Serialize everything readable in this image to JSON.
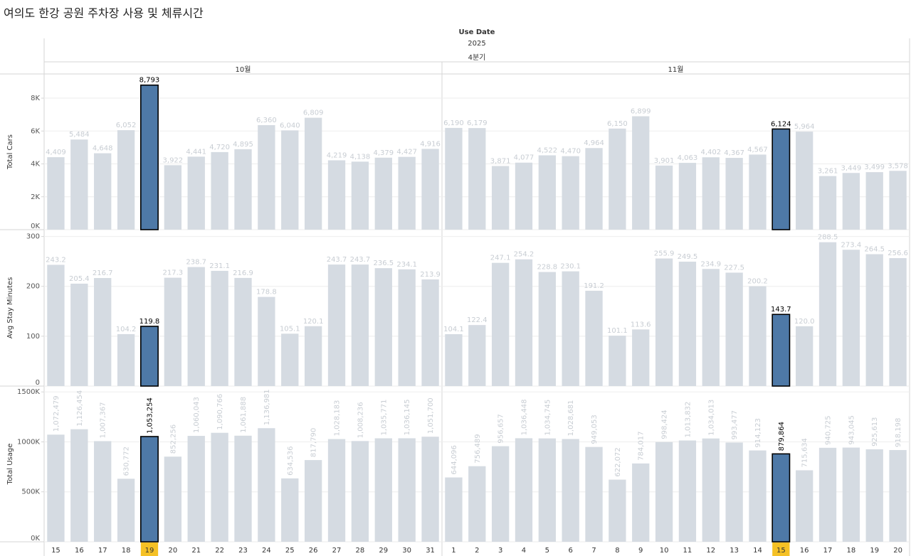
{
  "title": "여의도 한강 공원 주차장 사용 및 체류시간",
  "header": {
    "field_label": "Use Date",
    "year": "2025",
    "quarter": "4분기",
    "months": [
      "10월",
      "11월"
    ]
  },
  "colors": {
    "bar_default": "#d5dbe2",
    "bar_highlight": "#4e79a7",
    "highlight_outline": "#000000",
    "label_default": "#c8cdd3",
    "label_highlight": "#000000",
    "day_highlight_bg": "#f5c125",
    "grid": "#eeeeee",
    "divider": "#d6d6d6"
  },
  "chart_data": {
    "type": "bar",
    "facets": [
      "10월",
      "11월"
    ],
    "categories": [
      [
        "15",
        "16",
        "17",
        "18",
        "19",
        "20",
        "21",
        "22",
        "23",
        "24",
        "25",
        "26",
        "27",
        "28",
        "29",
        "30",
        "31"
      ],
      [
        "1",
        "2",
        "3",
        "4",
        "5",
        "6",
        "7",
        "8",
        "9",
        "10",
        "11",
        "12",
        "13",
        "14",
        "15",
        "16",
        "17",
        "18",
        "19",
        "20"
      ]
    ],
    "highlight": [
      4,
      14
    ],
    "series": [
      {
        "name": "Total Cars",
        "ylim": [
          0,
          9300
        ],
        "ticks": [
          0,
          2000,
          4000,
          6000,
          8000
        ],
        "tick_labels": [
          "0K",
          "2K",
          "4K",
          "6K",
          "8K"
        ],
        "values": [
          [
            4409,
            5484,
            4648,
            6052,
            8793,
            3922,
            4441,
            4720,
            4895,
            6360,
            6040,
            6809,
            4219,
            4138,
            4379,
            4427,
            4916
          ],
          [
            6190,
            6179,
            3871,
            4077,
            4522,
            4470,
            4964,
            6150,
            6899,
            3901,
            4063,
            4402,
            4367,
            4567,
            6124,
            5964,
            3261,
            3449,
            3499,
            3578
          ]
        ],
        "labels": [
          [
            "4,409",
            "5,484",
            "4,648",
            "6,052",
            "8,793",
            "3,922",
            "4,441",
            "4,720",
            "4,895",
            "6,360",
            "6,040",
            "6,809",
            "4,219",
            "4,138",
            "4,379",
            "4,427",
            "4,916"
          ],
          [
            "6,190",
            "6,179",
            "3,871",
            "4,077",
            "4,522",
            "4,470",
            "4,964",
            "6,150",
            "6,899",
            "3,901",
            "4,063",
            "4,402",
            "4,367",
            "4,567",
            "6,124",
            "5,964",
            "3,261",
            "3,449",
            "3,499",
            "3,578"
          ]
        ]
      },
      {
        "name": "Avg Stay Minutes",
        "ylim": [
          0,
          308
        ],
        "ticks": [
          0,
          100,
          200,
          300
        ],
        "tick_labels": [
          "0",
          "100",
          "200",
          "300"
        ],
        "values": [
          [
            243.2,
            205.4,
            216.7,
            104.2,
            119.8,
            217.3,
            238.7,
            231.1,
            216.9,
            178.8,
            105.1,
            120.1,
            243.7,
            243.7,
            236.5,
            234.1,
            213.9
          ],
          [
            104.1,
            122.4,
            247.1,
            254.2,
            228.8,
            230.1,
            191.2,
            101.1,
            113.6,
            255.9,
            249.5,
            234.9,
            227.5,
            200.2,
            143.7,
            120.0,
            288.5,
            273.4,
            264.5,
            256.6
          ]
        ],
        "labels": [
          [
            "243.2",
            "205.4",
            "216.7",
            "104.2",
            "119.8",
            "217.3",
            "238.7",
            "231.1",
            "216.9",
            "178.8",
            "105.1",
            "120.1",
            "243.7",
            "243.7",
            "236.5",
            "234.1",
            "213.9"
          ],
          [
            "104.1",
            "122.4",
            "247.1",
            "254.2",
            "228.8",
            "230.1",
            "191.2",
            "101.1",
            "113.6",
            "255.9",
            "249.5",
            "234.9",
            "227.5",
            "200.2",
            "143.7",
            "120.0",
            "288.5",
            "273.4",
            "264.5",
            "256.6"
          ]
        ]
      },
      {
        "name": "Total Usage",
        "ylim": [
          0,
          1530000
        ],
        "ticks": [
          0,
          500000,
          1000000,
          1500000
        ],
        "tick_labels": [
          "0K",
          "500K",
          "1000K",
          "1500K"
        ],
        "values": [
          [
            1072479,
            1126454,
            1007367,
            630772,
            1053254,
            852256,
            1060043,
            1090766,
            1061888,
            1136981,
            634536,
            817790,
            1028183,
            1008236,
            1035771,
            1036145,
            1051700
          ],
          [
            644096,
            756489,
            956657,
            1036448,
            1034745,
            1028681,
            949053,
            622072,
            784017,
            998424,
            1013832,
            1034013,
            993477,
            914123,
            879864,
            715634,
            940725,
            943045,
            925613,
            918198
          ]
        ],
        "labels": [
          [
            "1,072,479",
            "1,126,454",
            "1,007,367",
            "630,772",
            "1,053,254",
            "852,256",
            "1,060,043",
            "1,090,766",
            "1,061,888",
            "1,136,981",
            "634,536",
            "817,790",
            "1,028,183",
            "1,008,236",
            "1,035,771",
            "1,036,145",
            "1,051,700"
          ],
          [
            "644,096",
            "756,489",
            "956,657",
            "1,036,448",
            "1,034,745",
            "1,028,681",
            "949,053",
            "622,072",
            "784,017",
            "998,424",
            "1,013,832",
            "1,034,013",
            "993,477",
            "914,123",
            "879,864",
            "715,634",
            "940,725",
            "943,045",
            "925,613",
            "918,198"
          ]
        ]
      }
    ]
  }
}
